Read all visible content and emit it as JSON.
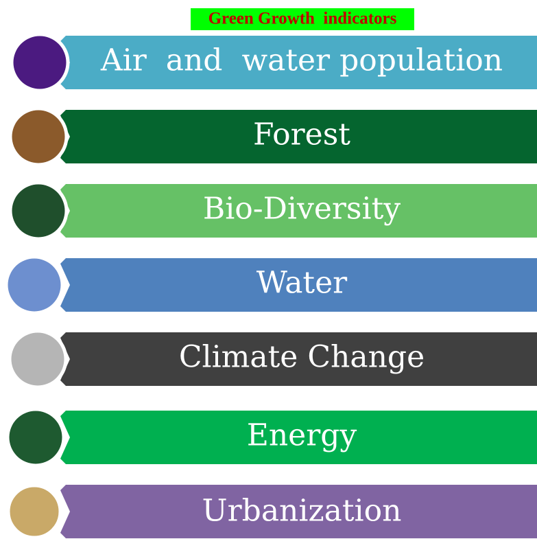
{
  "header": {
    "title": "Green Growth  indicators"
  },
  "items": [
    {
      "label": "Air  and  water population"
    },
    {
      "label": "Forest"
    },
    {
      "label": "Bio-Diversity"
    },
    {
      "label": "Water"
    },
    {
      "label": "Climate Change"
    },
    {
      "label": "Energy"
    },
    {
      "label": "Urbanization"
    }
  ]
}
